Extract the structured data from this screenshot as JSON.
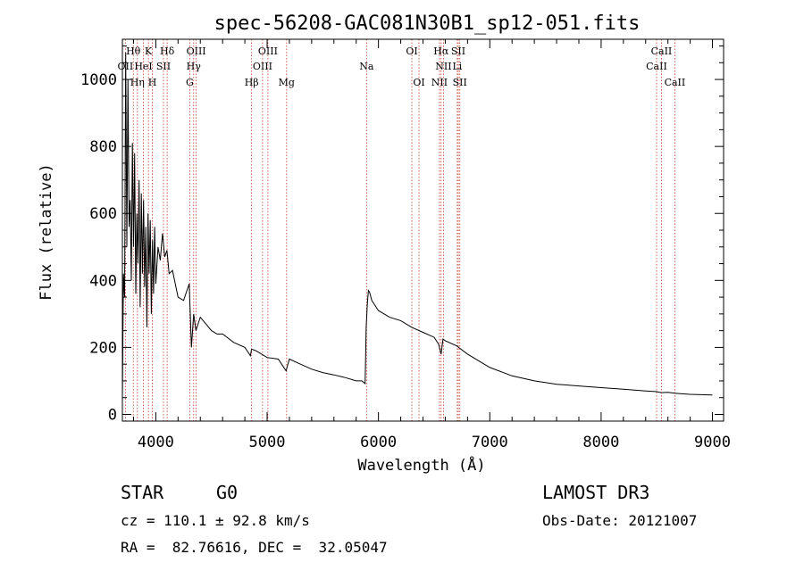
{
  "chart_data": {
    "type": "line",
    "title": "spec-56208-GAC081N30B1_sp12-051.fits",
    "xlabel": "Wavelength (Å)",
    "ylabel": "Flux (relative)",
    "xlim": [
      3700,
      9100
    ],
    "ylim": [
      -20,
      1120
    ],
    "xticks": [
      4000,
      5000,
      6000,
      7000,
      8000,
      9000
    ],
    "yticks": [
      0,
      200,
      400,
      600,
      800,
      1000
    ],
    "series": [
      {
        "name": "spectrum",
        "x": [
          3700,
          3710,
          3720,
          3730,
          3740,
          3750,
          3760,
          3770,
          3780,
          3790,
          3800,
          3810,
          3820,
          3830,
          3840,
          3850,
          3860,
          3870,
          3880,
          3890,
          3900,
          3910,
          3920,
          3930,
          3940,
          3950,
          3960,
          3970,
          3980,
          3990,
          4000,
          4020,
          4040,
          4060,
          4080,
          4100,
          4120,
          4150,
          4200,
          4250,
          4300,
          4320,
          4340,
          4360,
          4400,
          4450,
          4500,
          4550,
          4600,
          4700,
          4800,
          4850,
          4860,
          4900,
          5000,
          5100,
          5170,
          5200,
          5300,
          5400,
          5500,
          5600,
          5700,
          5800,
          5850,
          5880,
          5890,
          5900,
          5910,
          5920,
          5940,
          5960,
          6000,
          6100,
          6200,
          6300,
          6400,
          6500,
          6540,
          6563,
          6580,
          6600,
          6700,
          6800,
          6900,
          7000,
          7200,
          7400,
          7600,
          7800,
          8000,
          8200,
          8400,
          8500,
          8540,
          8600,
          8660,
          8800,
          9000
        ],
        "y": [
          50,
          420,
          350,
          1080,
          500,
          1000,
          560,
          640,
          400,
          810,
          500,
          780,
          360,
          600,
          450,
          700,
          320,
          660,
          420,
          640,
          380,
          560,
          260,
          600,
          420,
          580,
          300,
          520,
          360,
          560,
          390,
          500,
          460,
          540,
          470,
          490,
          420,
          430,
          350,
          340,
          390,
          200,
          300,
          250,
          290,
          270,
          250,
          240,
          240,
          215,
          200,
          175,
          195,
          190,
          170,
          165,
          130,
          165,
          150,
          135,
          125,
          118,
          110,
          100,
          100,
          92,
          260,
          330,
          370,
          365,
          340,
          330,
          310,
          290,
          280,
          260,
          245,
          230,
          210,
          180,
          225,
          220,
          205,
          180,
          160,
          140,
          115,
          100,
          90,
          85,
          80,
          75,
          70,
          68,
          65,
          66,
          63,
          60,
          58
        ]
      }
    ],
    "spectral_lines": [
      {
        "name": "Hθ",
        "wl": 3798,
        "row": 0
      },
      {
        "name": "K",
        "wl": 3934,
        "row": 0
      },
      {
        "name": "Hδ",
        "wl": 4102,
        "row": 0
      },
      {
        "name": "OIII",
        "wl": 4363,
        "row": 0
      },
      {
        "name": "OIII",
        "wl": 5007,
        "row": 0
      },
      {
        "name": "OI",
        "wl": 6300,
        "row": 0
      },
      {
        "name": "Hα",
        "wl": 6563,
        "row": 0
      },
      {
        "name": "SII",
        "wl": 6717,
        "row": 0
      },
      {
        "name": "CaII",
        "wl": 8542,
        "row": 0
      },
      {
        "name": "OII",
        "wl": 3727,
        "row": 1
      },
      {
        "name": "HeI",
        "wl": 3889,
        "row": 1
      },
      {
        "name": "SII",
        "wl": 4069,
        "row": 1
      },
      {
        "name": "Hγ",
        "wl": 4340,
        "row": 1
      },
      {
        "name": "OIII",
        "wl": 4959,
        "row": 1
      },
      {
        "name": "Na",
        "wl": 5893,
        "row": 1
      },
      {
        "name": "NII",
        "wl": 6584,
        "row": 1
      },
      {
        "name": "Li",
        "wl": 6708,
        "row": 1
      },
      {
        "name": "CaII",
        "wl": 8498,
        "row": 1
      },
      {
        "name": "Hη",
        "wl": 3835,
        "row": 2
      },
      {
        "name": "H",
        "wl": 3969,
        "row": 2
      },
      {
        "name": "G",
        "wl": 4305,
        "row": 2
      },
      {
        "name": "Hβ",
        "wl": 4861,
        "row": 2
      },
      {
        "name": "Mg",
        "wl": 5175,
        "row": 2
      },
      {
        "name": "OI",
        "wl": 6364,
        "row": 2
      },
      {
        "name": "NII",
        "wl": 6548,
        "row": 2
      },
      {
        "name": "SII",
        "wl": 6731,
        "row": 2
      },
      {
        "name": "CaII",
        "wl": 8662,
        "row": 2
      }
    ],
    "colors": {
      "line": "#000000",
      "marker": "#c0392b",
      "axes": "#000000"
    }
  },
  "info": {
    "class": "STAR",
    "subclass": "G0",
    "survey": "LAMOST DR3",
    "cz": "cz = 110.1 ± 92.8 km/s",
    "obs_date": "Obs-Date: 20121007",
    "coords": "RA =  82.76616, DEC =  32.05047"
  }
}
